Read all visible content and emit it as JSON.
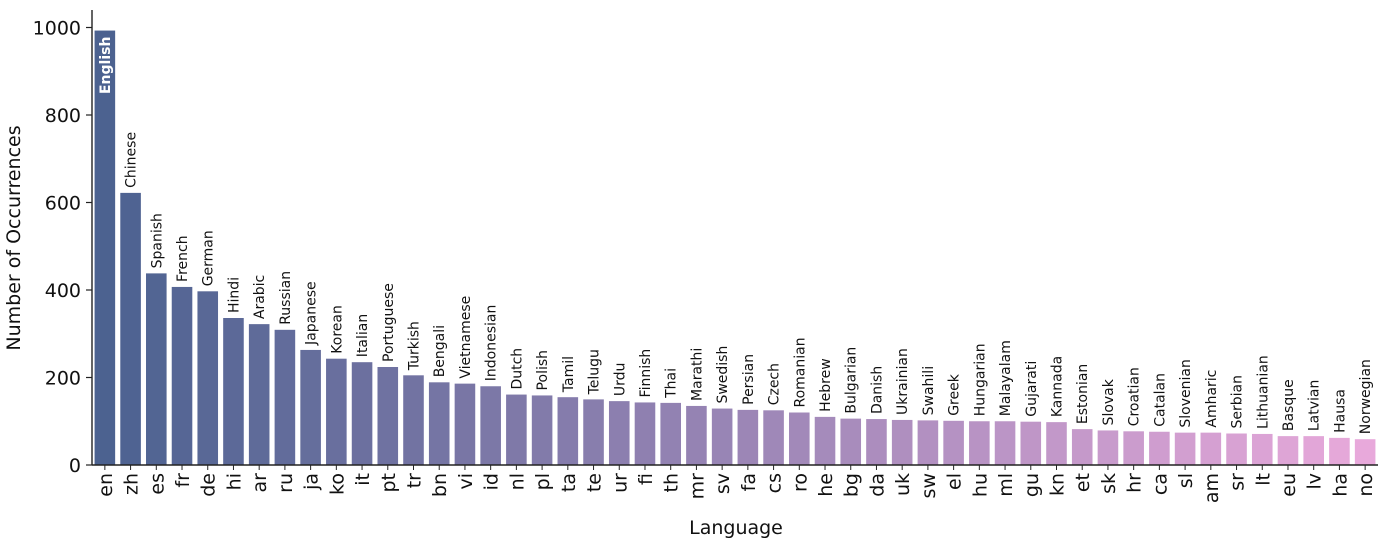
{
  "chart_data": {
    "type": "bar",
    "xlabel": "Language",
    "ylabel": "Number of Occurrences",
    "ylim": [
      0,
      1040
    ],
    "yticks": [
      0,
      200,
      400,
      600,
      800,
      1000
    ],
    "grid": false,
    "colors": {
      "start": "#4c6290",
      "end": "#e8a9db"
    },
    "highlight_label": "English",
    "categories": [
      "en",
      "zh",
      "es",
      "fr",
      "de",
      "hi",
      "ar",
      "ru",
      "ja",
      "ko",
      "it",
      "pt",
      "tr",
      "bn",
      "vi",
      "id",
      "nl",
      "pl",
      "ta",
      "te",
      "ur",
      "fi",
      "th",
      "mr",
      "sv",
      "fa",
      "cs",
      "ro",
      "he",
      "bg",
      "da",
      "uk",
      "sw",
      "el",
      "hu",
      "ml",
      "gu",
      "kn",
      "et",
      "sk",
      "hr",
      "ca",
      "sl",
      "am",
      "sr",
      "lt",
      "eu",
      "lv",
      "ha",
      "no"
    ],
    "labels": [
      "English",
      "Chinese",
      "Spanish",
      "French",
      "German",
      "Hindi",
      "Arabic",
      "Russian",
      "Japanese",
      "Korean",
      "Italian",
      "Portuguese",
      "Turkish",
      "Bengali",
      "Vietnamese",
      "Indonesian",
      "Dutch",
      "Polish",
      "Tamil",
      "Telugu",
      "Urdu",
      "Finnish",
      "Thai",
      "Marathi",
      "Swedish",
      "Persian",
      "Czech",
      "Romanian",
      "Hebrew",
      "Bulgarian",
      "Danish",
      "Ukrainian",
      "Swahili",
      "Greek",
      "Hungarian",
      "Malayalam",
      "Gujarati",
      "Kannada",
      "Estonian",
      "Slovak",
      "Croatian",
      "Catalan",
      "Slovenian",
      "Amharic",
      "Serbian",
      "Lithuanian",
      "Basque",
      "Latvian",
      "Hausa",
      "Norwegian"
    ],
    "values": [
      993,
      622,
      438,
      407,
      397,
      336,
      322,
      309,
      263,
      243,
      235,
      224,
      205,
      189,
      186,
      180,
      161,
      159,
      155,
      150,
      146,
      143,
      142,
      135,
      129,
      126,
      125,
      120,
      110,
      106,
      105,
      103,
      102,
      101,
      100,
      100,
      99,
      98,
      82,
      79,
      77,
      76,
      74,
      74,
      72,
      71,
      66,
      66,
      62,
      59
    ]
  }
}
